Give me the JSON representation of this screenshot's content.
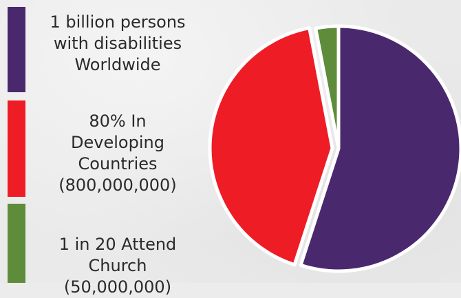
{
  "chart_data": {
    "type": "pie",
    "slices": [
      {
        "label": "1 billion persons\nwith disabilities\nWorldwide",
        "value": 55,
        "color": "#4a286e"
      },
      {
        "label": "80% In\nDeveloping\nCountries\n(800,000,000)",
        "value": 42,
        "color": "#ee1c25"
      },
      {
        "label": "1 in 20 Attend\nChurch\n(50,000,000)",
        "value": 3,
        "color": "#5e8c3a"
      }
    ]
  }
}
